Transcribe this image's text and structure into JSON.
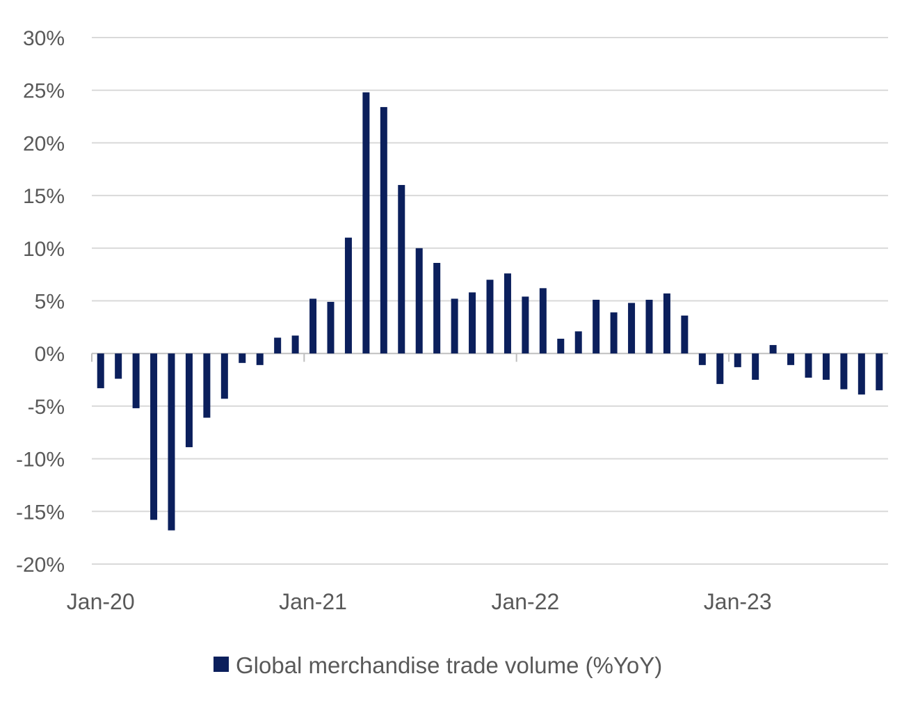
{
  "chart_data": {
    "type": "bar",
    "series": [
      {
        "name": "Global merchandise trade volume (%YoY)",
        "color": "#0b1f5c",
        "x": [
          "2020-01",
          "2020-02",
          "2020-03",
          "2020-04",
          "2020-05",
          "2020-06",
          "2020-07",
          "2020-08",
          "2020-09",
          "2020-10",
          "2020-11",
          "2020-12",
          "2021-01",
          "2021-02",
          "2021-03",
          "2021-04",
          "2021-05",
          "2021-06",
          "2021-07",
          "2021-08",
          "2021-09",
          "2021-10",
          "2021-11",
          "2021-12",
          "2022-01",
          "2022-02",
          "2022-03",
          "2022-04",
          "2022-05",
          "2022-06",
          "2022-07",
          "2022-08",
          "2022-09",
          "2022-10",
          "2022-11",
          "2022-12",
          "2023-01",
          "2023-02",
          "2023-03",
          "2023-04",
          "2023-05",
          "2023-06",
          "2023-07",
          "2023-08",
          "2023-09"
        ],
        "values": [
          -3.3,
          -2.4,
          -5.2,
          -15.8,
          -16.8,
          -8.9,
          -6.1,
          -4.3,
          -0.9,
          -1.1,
          1.5,
          1.7,
          5.2,
          4.9,
          11.0,
          24.8,
          23.4,
          16.0,
          10.0,
          8.6,
          5.2,
          5.8,
          7.0,
          7.6,
          5.4,
          6.2,
          1.4,
          2.1,
          5.1,
          3.9,
          4.8,
          5.1,
          5.7,
          3.6,
          -1.1,
          -2.9,
          -1.3,
          -2.5,
          0.8,
          -1.1,
          -2.3,
          -2.5,
          -3.4,
          -3.9,
          -3.5
        ]
      }
    ],
    "ylim": [
      -20,
      30
    ],
    "yticks": [
      30,
      25,
      20,
      15,
      10,
      5,
      0,
      -5,
      -10,
      -15,
      -20
    ],
    "ytick_labels": [
      "30%",
      "25%",
      "20%",
      "15%",
      "10%",
      "5%",
      "0%",
      "-5%",
      "-10%",
      "-15%",
      "-20%"
    ],
    "xtick_labels": [
      "Jan-20",
      "Jan-21",
      "Jan-22",
      "Jan-23"
    ],
    "xlabel": "",
    "ylabel": "",
    "title": "",
    "grid": true,
    "legend": {
      "position": "bottom-center"
    },
    "colors": {
      "bar": "#0b1f5c",
      "grid": "#d9d9d9",
      "axis": "#bfbfbf",
      "text": "#595959"
    }
  }
}
